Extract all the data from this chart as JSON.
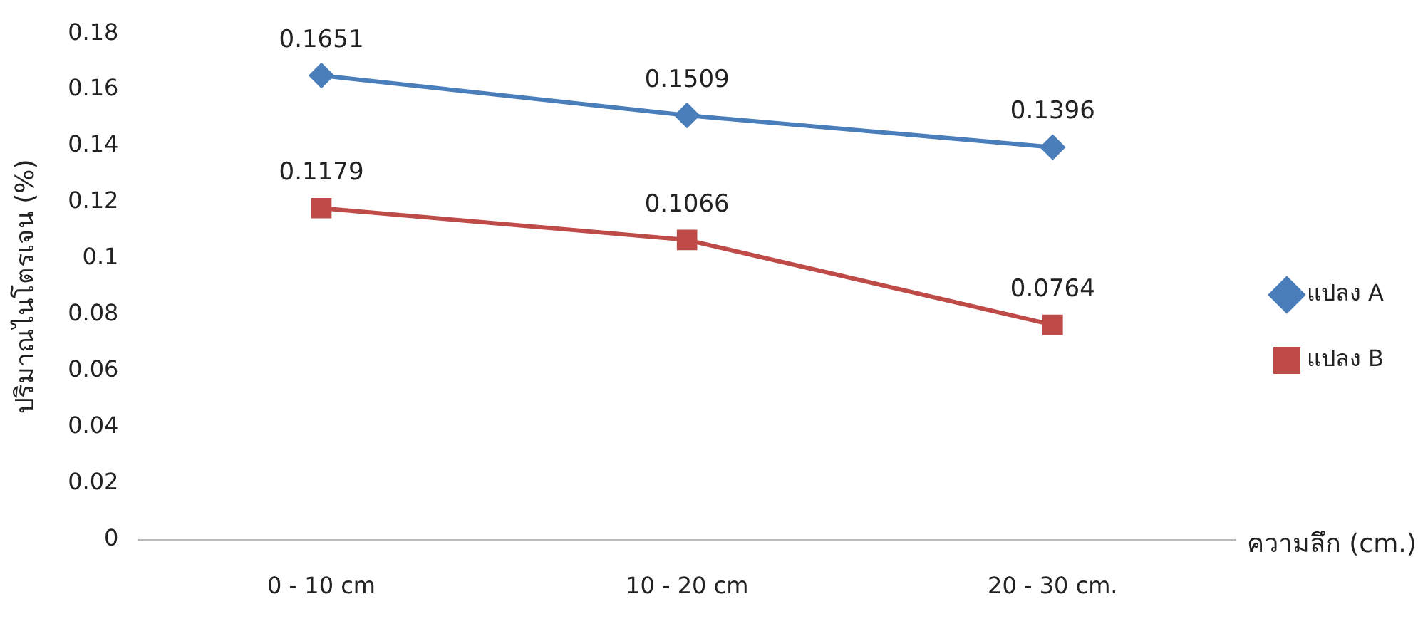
{
  "chart_data": {
    "type": "line",
    "xlabel": "ความลึก (cm.)",
    "ylabel": "ปริมาณไนโตรเจน (%)",
    "categories": [
      "0 - 10 cm",
      "10 - 20 cm",
      "20 - 30 cm."
    ],
    "series": [
      {
        "name": "แปลง A",
        "color": "#4a7ebb",
        "marker": "diamond",
        "values": [
          0.1651,
          0.1509,
          0.1396
        ]
      },
      {
        "name": "แปลง B",
        "color": "#be4b48",
        "marker": "square",
        "values": [
          0.1179,
          0.1066,
          0.0764
        ]
      }
    ],
    "ylim": [
      0,
      0.18
    ],
    "yticks": [
      0,
      0.02,
      0.04,
      0.06,
      0.08,
      0.1,
      0.12,
      0.14,
      0.16,
      0.18
    ],
    "grid": false,
    "legend": "right",
    "data_labels": true,
    "line_style": "solid"
  }
}
